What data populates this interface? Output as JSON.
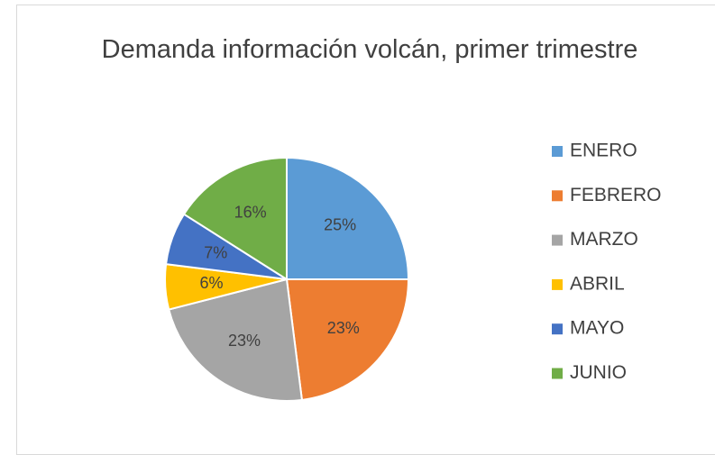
{
  "chart_data": {
    "type": "pie",
    "title": "Demanda información volcán, primer trimestre",
    "categories": [
      "ENERO",
      "FEBRERO",
      "MARZO",
      "ABRIL",
      "MAYO",
      "JUNIO"
    ],
    "values": [
      25,
      23,
      23,
      6,
      7,
      16
    ],
    "value_labels": [
      "25%",
      "23%",
      "23%",
      "6%",
      "7%",
      "16%"
    ],
    "colors": [
      "#5b9bd5",
      "#ed7d31",
      "#a5a5a5",
      "#ffc000",
      "#4472c4",
      "#70ad47"
    ],
    "legend": "right"
  }
}
